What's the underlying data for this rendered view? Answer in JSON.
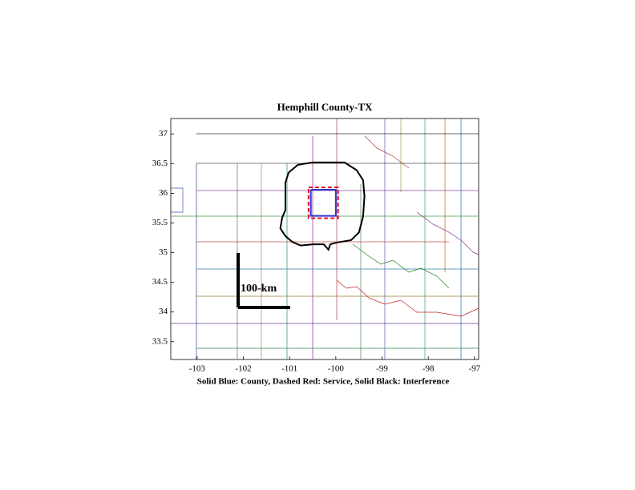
{
  "chart_data": {
    "type": "map",
    "title": "Hemphill County-TX",
    "xlabel": "Solid Blue: County, Dashed Red: Service, Solid Black: Interference",
    "annotation": "100-km",
    "xlim": [
      -103.57,
      -96.91
    ],
    "ylim": [
      33.2,
      37.26
    ],
    "xticks": [
      -103,
      -102,
      -101,
      -100,
      -99,
      -98,
      -97
    ],
    "yticks": [
      33.5,
      34,
      34.5,
      35,
      35.5,
      36,
      36.5,
      37
    ],
    "series": [
      {
        "color": "#3333cc",
        "style": "solid",
        "x": [
          -100.54,
          -100.0,
          -100.0,
          -100.54,
          -100.54
        ],
        "y": [
          36.06,
          36.06,
          35.62,
          35.62,
          36.06
        ]
      },
      {
        "color": "#dd1133",
        "style": "dashed",
        "x": [
          -100.59,
          -99.95,
          -99.95,
          -100.59,
          -100.59
        ],
        "y": [
          36.1,
          36.1,
          35.58,
          35.58,
          36.1
        ]
      },
      {
        "color": "#000000",
        "style": "solid",
        "x": [
          -101.02,
          -100.82,
          -100.5,
          -99.81,
          -99.55,
          -99.41,
          -99.38,
          -99.41,
          -99.5,
          -99.67,
          -99.98,
          -100.12,
          -100.16,
          -100.26,
          -100.5,
          -100.76,
          -100.94,
          -101.09,
          -101.2,
          -101.16,
          -101.09,
          -101.09,
          -101.09,
          -101.02
        ],
        "y": [
          36.35,
          36.48,
          36.52,
          36.52,
          36.39,
          36.22,
          35.95,
          35.61,
          35.34,
          35.21,
          35.17,
          35.14,
          35.05,
          35.14,
          35.14,
          35.12,
          35.18,
          35.28,
          35.41,
          35.59,
          35.72,
          36.02,
          36.18,
          36.35
        ]
      }
    ]
  }
}
